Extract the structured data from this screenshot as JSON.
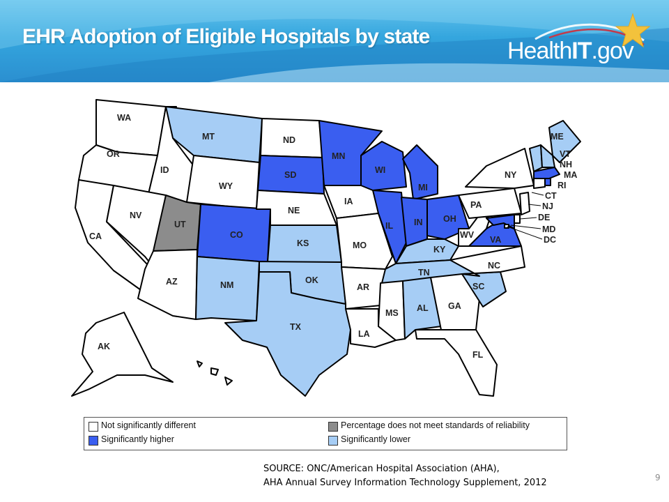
{
  "slide": {
    "title": "EHR Adoption of Eligible Hospitals by state",
    "page_number": "9"
  },
  "logo": {
    "text_light": "Health",
    "text_bold": "IT",
    "text_suffix": ".gov",
    "star_icon": "star-icon"
  },
  "colors": {
    "not_different": "#ffffff",
    "higher": "#3a5ef0",
    "unreliable": "#8c8c8c",
    "lower": "#a6cdf5",
    "header_blue": "#2b8fd0",
    "star_gold": "#f3c23c"
  },
  "legend": {
    "not_different": "Not significantly different",
    "unreliable": "Percentage does not meet standards of reliability",
    "higher": "Significantly higher",
    "lower": "Significantly lower"
  },
  "states": {
    "WA": {
      "label": "WA",
      "status": "not_different"
    },
    "OR": {
      "label": "OR",
      "status": "not_different"
    },
    "CA": {
      "label": "CA",
      "status": "not_different"
    },
    "ID": {
      "label": "ID",
      "status": "not_different"
    },
    "NV": {
      "label": "NV",
      "status": "not_different"
    },
    "MT": {
      "label": "MT",
      "status": "lower"
    },
    "WY": {
      "label": "WY",
      "status": "not_different"
    },
    "UT": {
      "label": "UT",
      "status": "unreliable"
    },
    "AZ": {
      "label": "AZ",
      "status": "not_different"
    },
    "CO": {
      "label": "CO",
      "status": "higher"
    },
    "NM": {
      "label": "NM",
      "status": "lower"
    },
    "ND": {
      "label": "ND",
      "status": "not_different"
    },
    "SD": {
      "label": "SD",
      "status": "higher"
    },
    "NE": {
      "label": "NE",
      "status": "not_different"
    },
    "KS": {
      "label": "KS",
      "status": "lower"
    },
    "OK": {
      "label": "OK",
      "status": "lower"
    },
    "TX": {
      "label": "TX",
      "status": "lower"
    },
    "MN": {
      "label": "MN",
      "status": "higher"
    },
    "IA": {
      "label": "IA",
      "status": "not_different"
    },
    "MO": {
      "label": "MO",
      "status": "not_different"
    },
    "AR": {
      "label": "AR",
      "status": "not_different"
    },
    "LA": {
      "label": "LA",
      "status": "not_different"
    },
    "WI": {
      "label": "WI",
      "status": "higher"
    },
    "IL": {
      "label": "IL",
      "status": "higher"
    },
    "MI": {
      "label": "MI",
      "status": "higher"
    },
    "IN": {
      "label": "IN",
      "status": "higher"
    },
    "OH": {
      "label": "OH",
      "status": "higher"
    },
    "KY": {
      "label": "KY",
      "status": "lower"
    },
    "TN": {
      "label": "TN",
      "status": "lower"
    },
    "MS": {
      "label": "MS",
      "status": "not_different"
    },
    "AL": {
      "label": "AL",
      "status": "lower"
    },
    "GA": {
      "label": "GA",
      "status": "not_different"
    },
    "FL": {
      "label": "FL",
      "status": "not_different"
    },
    "SC": {
      "label": "SC",
      "status": "lower"
    },
    "NC": {
      "label": "NC",
      "status": "not_different"
    },
    "VA": {
      "label": "VA",
      "status": "higher"
    },
    "WV": {
      "label": "WV",
      "status": "not_different"
    },
    "PA": {
      "label": "PA",
      "status": "not_different"
    },
    "NY": {
      "label": "NY",
      "status": "not_different"
    },
    "ME": {
      "label": "ME",
      "status": "lower"
    },
    "VT": {
      "label": "VT",
      "status": "lower"
    },
    "NH": {
      "label": "NH",
      "status": "lower"
    },
    "MA": {
      "label": "MA",
      "status": "higher"
    },
    "RI": {
      "label": "RI",
      "status": "higher"
    },
    "CT": {
      "label": "CT",
      "status": "not_different"
    },
    "NJ": {
      "label": "NJ",
      "status": "not_different"
    },
    "DE": {
      "label": "DE",
      "status": "not_different"
    },
    "MD": {
      "label": "MD",
      "status": "higher"
    },
    "DC": {
      "label": "DC",
      "status": "not_different"
    },
    "AK": {
      "label": "AK",
      "status": "not_different"
    },
    "HI": {
      "label": "",
      "status": "not_different"
    }
  },
  "source": {
    "line1": "SOURCE: ONC/American Hospital Association (AHA),",
    "line2": "AHA Annual Survey Information Technology Supplement, 2012"
  }
}
